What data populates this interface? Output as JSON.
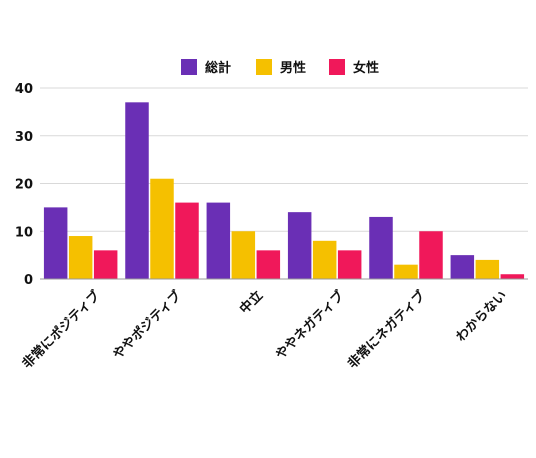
{
  "chart_data": {
    "type": "bar",
    "categories": [
      "非常にポジティブ",
      "ややポジティブ",
      "中立",
      "ややネガティブ",
      "非常にネガティブ",
      "わからない"
    ],
    "series": [
      {
        "name": "総計",
        "color": "#6a2fb5",
        "values": [
          15,
          37,
          16,
          14,
          13,
          5
        ]
      },
      {
        "name": "男性",
        "color": "#f5c000",
        "values": [
          9,
          21,
          10,
          8,
          3,
          4
        ]
      },
      {
        "name": "女性",
        "color": "#f0185a",
        "values": [
          6,
          16,
          6,
          6,
          10,
          1
        ]
      }
    ],
    "yticks": [
      0,
      10,
      20,
      30,
      40
    ],
    "ylim": [
      0,
      40
    ],
    "legend_position": "top-center",
    "grid": true
  }
}
